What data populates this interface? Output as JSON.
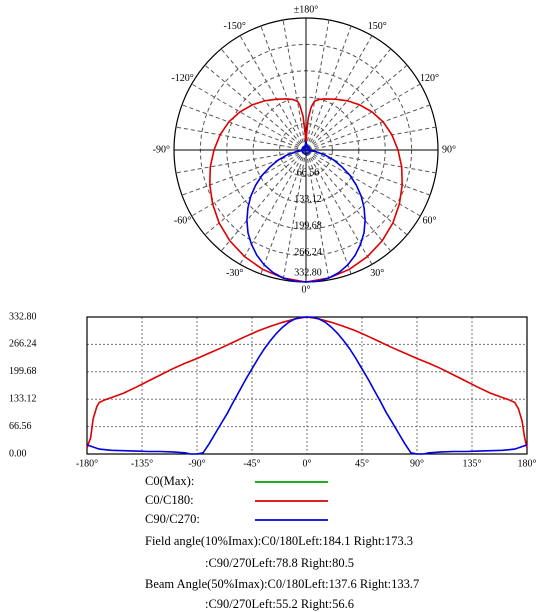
{
  "chart_data": [
    {
      "type": "polar",
      "angle_labels": [
        "±180°",
        "-150°",
        "150°",
        "-120°",
        "120°",
        "-90°",
        "90°",
        "-60°",
        "60°",
        "-30°",
        "30°",
        "0°"
      ],
      "radial_ticks": [
        66.56,
        133.12,
        199.68,
        266.24,
        332.8
      ],
      "radial_tick_labels": [
        "66.56",
        "133.12",
        "199.68",
        "266.24",
        "332.80"
      ],
      "rmax": 332.8,
      "grid": true,
      "series_ref": [
        "C0/C180",
        "C90/C270"
      ]
    },
    {
      "type": "line",
      "xlim": [
        -180,
        180
      ],
      "ylim": [
        0,
        332.8
      ],
      "x_ticks": [
        -180,
        -135,
        -90,
        -45,
        0,
        45,
        90,
        135,
        180
      ],
      "x_tick_labels": [
        "-180°",
        "-135°",
        "-90°",
        "-45°",
        "0°",
        "45°",
        "90°",
        "135°",
        "180°"
      ],
      "y_ticks": [
        0,
        66.56,
        133.12,
        199.68,
        266.24,
        332.8
      ],
      "y_tick_labels": [
        "0.00",
        "66.56",
        "133.12",
        "199.68",
        "266.24",
        "332.80"
      ],
      "grid": true,
      "series": [
        {
          "name": "C0(Max)",
          "color": "#00a000",
          "x": [],
          "y": []
        },
        {
          "name": "C0/C180",
          "color": "#e00000",
          "x": [
            -180,
            -177,
            -175,
            -172,
            -170,
            -165,
            -160,
            -150,
            -140,
            -130,
            -120,
            -110,
            -100,
            -90,
            -80,
            -70,
            -60,
            -50,
            -40,
            -30,
            -20,
            -10,
            0,
            10,
            20,
            30,
            40,
            50,
            60,
            70,
            80,
            90,
            100,
            110,
            120,
            130,
            140,
            150,
            160,
            165,
            170,
            173,
            176,
            178,
            180
          ],
          "y": [
            15,
            40,
            85,
            115,
            125,
            132,
            137,
            148,
            162,
            177,
            192,
            207,
            220,
            232,
            245,
            258,
            272,
            286,
            299,
            310,
            320,
            328,
            332.8,
            328,
            320,
            310,
            299,
            286,
            272,
            258,
            245,
            232,
            220,
            207,
            192,
            177,
            162,
            148,
            137,
            132,
            125,
            110,
            80,
            40,
            15
          ]
        },
        {
          "name": "C90/C270",
          "color": "#0000e0",
          "x": [
            -180,
            -170,
            -160,
            -150,
            -140,
            -130,
            -120,
            -110,
            -100,
            -95,
            -90,
            -85,
            -80,
            -75,
            -70,
            -65,
            -60,
            -55,
            -50,
            -45,
            -40,
            -35,
            -30,
            -25,
            -20,
            -15,
            -10,
            -5,
            0,
            5,
            10,
            15,
            20,
            25,
            30,
            35,
            40,
            45,
            50,
            55,
            60,
            65,
            70,
            75,
            80,
            85,
            90,
            95,
            100,
            110,
            120,
            130,
            140,
            150,
            160,
            170,
            180
          ],
          "y": [
            22,
            12,
            9,
            8,
            7,
            6,
            6,
            5,
            3,
            0,
            0,
            3,
            25,
            50,
            75,
            100,
            128,
            155,
            182,
            207,
            232,
            255,
            275,
            293,
            308,
            320,
            328,
            332,
            332.8,
            332,
            328,
            320,
            308,
            293,
            275,
            255,
            232,
            207,
            182,
            155,
            128,
            100,
            75,
            50,
            25,
            3,
            0,
            0,
            3,
            5,
            6,
            6,
            7,
            8,
            9,
            12,
            22
          ]
        }
      ]
    }
  ],
  "legend": [
    {
      "label": "C0(Max):",
      "color": "#00a000"
    },
    {
      "label": "C0/C180:",
      "color": "#e00000"
    },
    {
      "label": "C90/C270:",
      "color": "#0000e0"
    }
  ],
  "info_lines": [
    "Field angle(10%Imax):C0/180Left:184.1 Right:173.3",
    ":C90/270Left:78.8 Right:80.5",
    "Beam Angle(50%Imax):C0/180Left:137.6 Right:133.7",
    ":C90/270Left:55.2 Right:56.6"
  ]
}
